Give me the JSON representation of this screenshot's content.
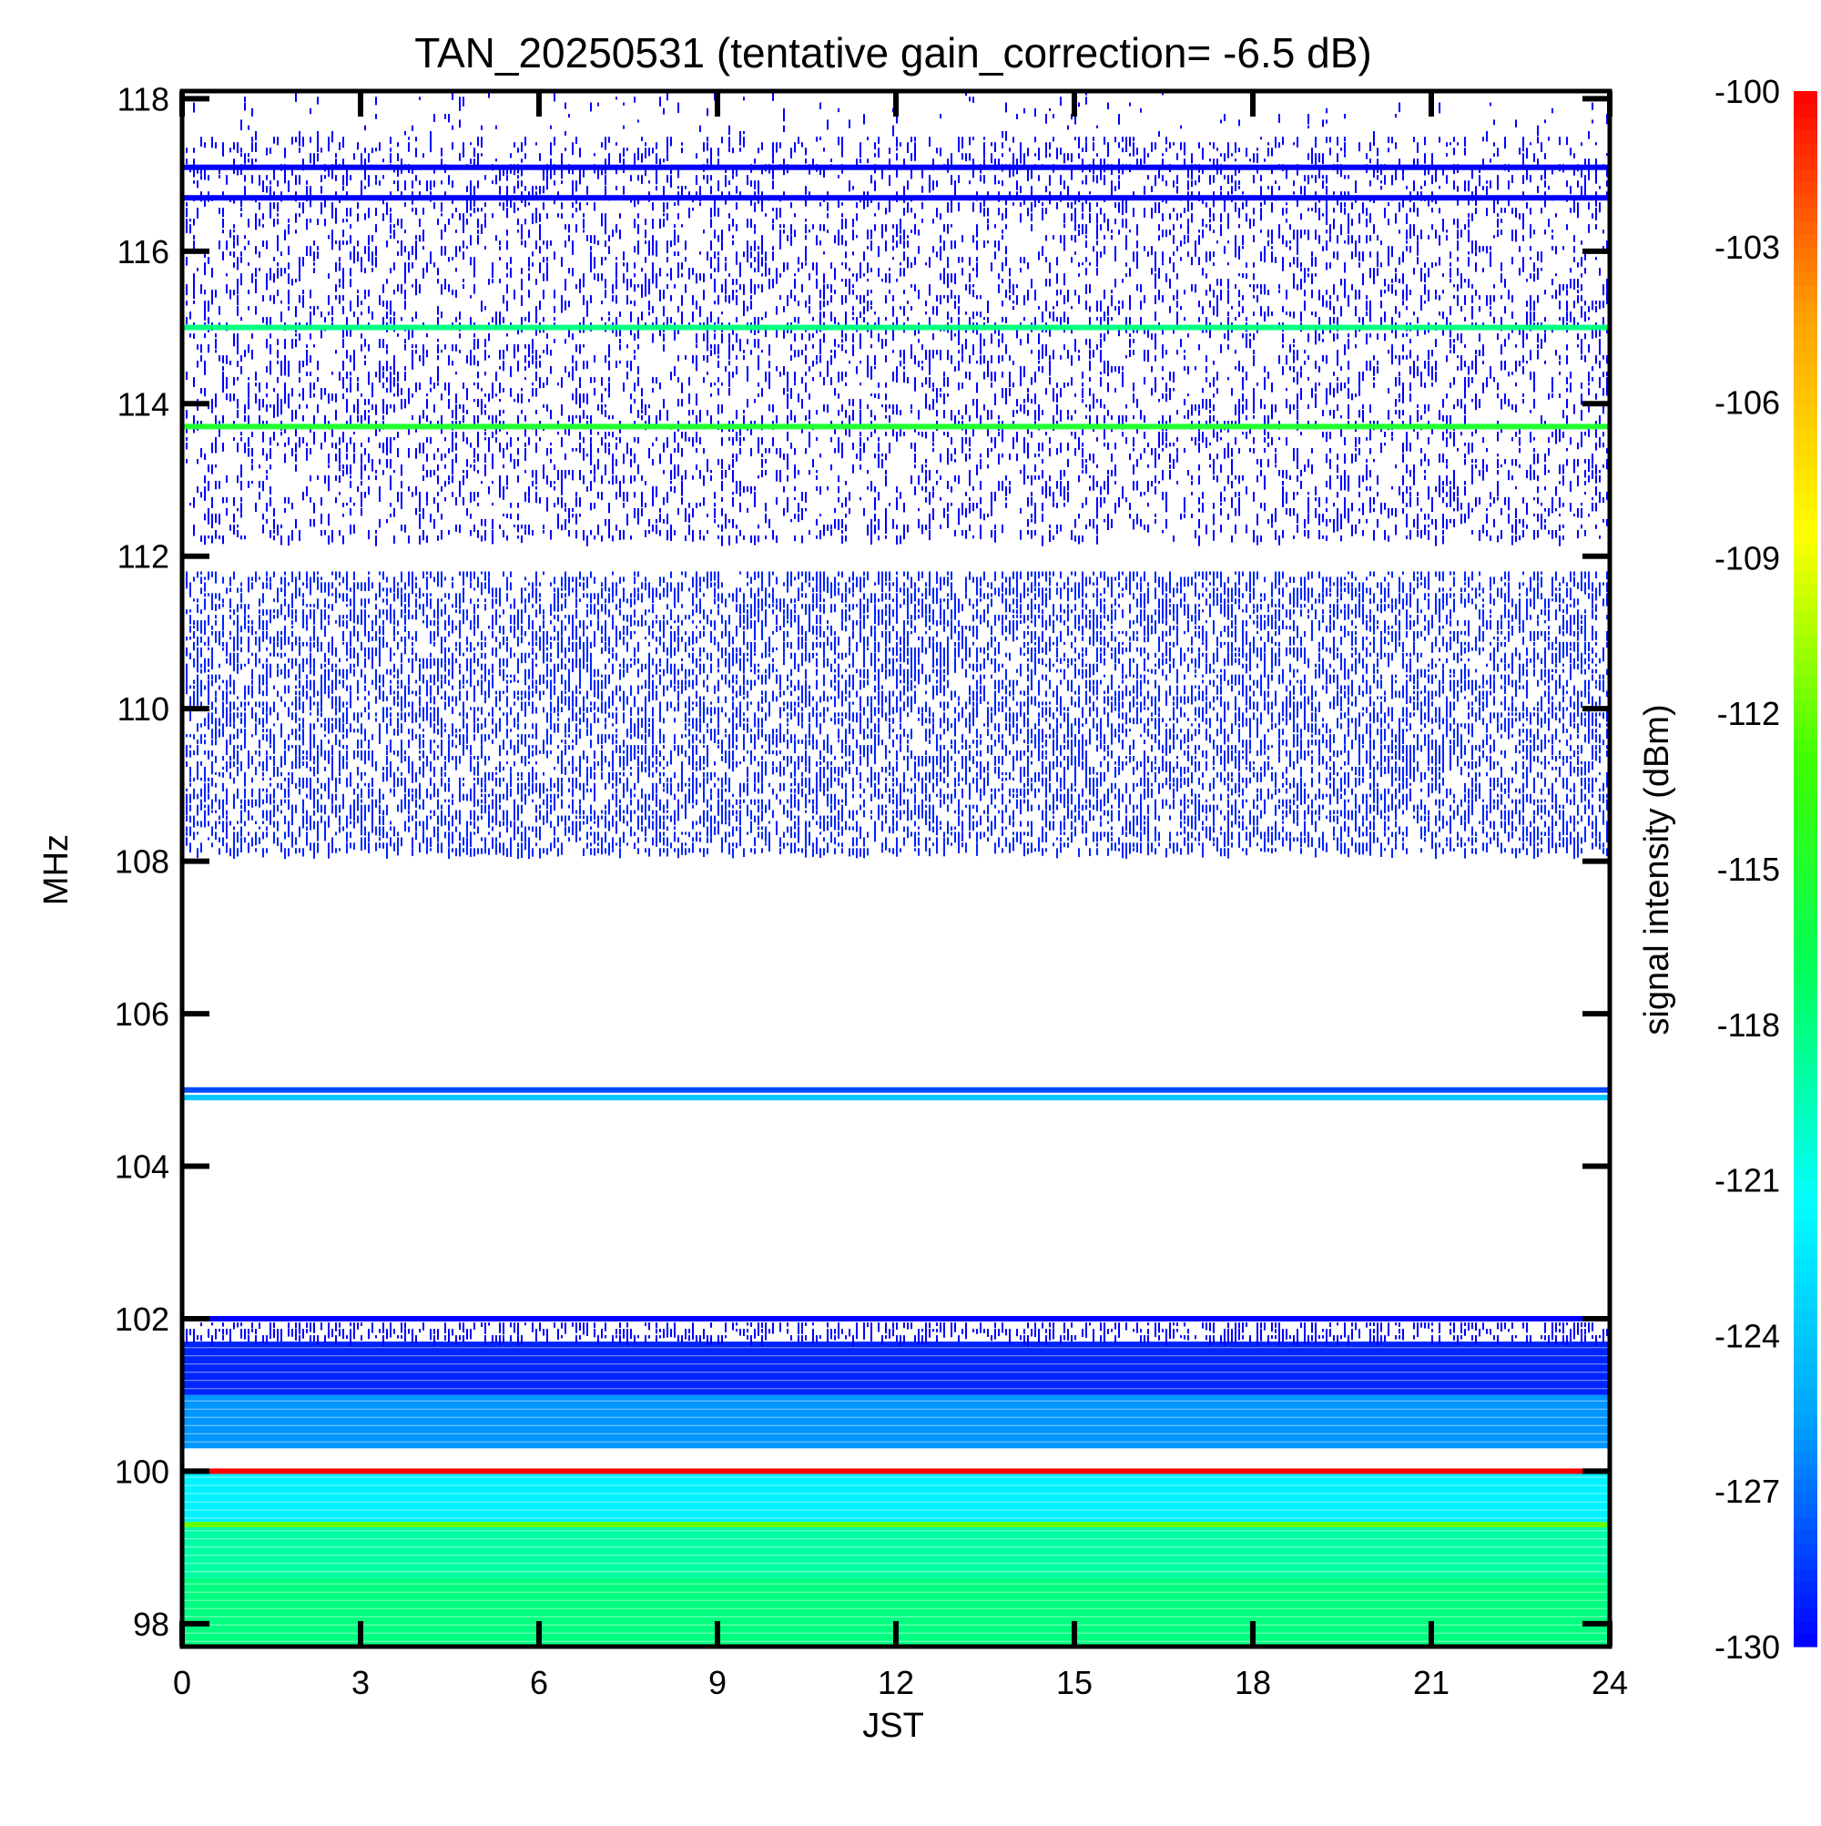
{
  "chart_data": {
    "type": "heatmap",
    "title": "TAN_20250531 (tentative gain_correction= -6.5 dB)",
    "xlabel": "JST",
    "ylabel": "MHz",
    "colorbar_label": "signal intensity (dBm)",
    "xlim": [
      0,
      24
    ],
    "ylim": [
      97.7,
      118.1
    ],
    "x_ticks": [
      0,
      3,
      6,
      9,
      12,
      15,
      18,
      21,
      24
    ],
    "x_tick_labels": [
      "0",
      "3",
      "6",
      "9",
      "12",
      "15",
      "18",
      "21",
      "24"
    ],
    "y_ticks": [
      98,
      100,
      102,
      104,
      106,
      108,
      110,
      112,
      114,
      116,
      118
    ],
    "y_tick_labels": [
      "98",
      "100",
      "102",
      "104",
      "106",
      "108",
      "110",
      "112",
      "114",
      "116",
      "118"
    ],
    "color_range": [
      -130,
      -100
    ],
    "colorbar_ticks": [
      -100,
      -103,
      -106,
      -109,
      -112,
      -115,
      -118,
      -121,
      -124,
      -127,
      -130
    ],
    "colorbar_tick_labels": [
      "-100",
      "-103",
      "-106",
      "-109",
      "-112",
      "-115",
      "-118",
      "-121",
      "-124",
      "-127",
      "-130"
    ],
    "colormap": [
      "#0000ff",
      "#00a0ff",
      "#00ffff",
      "#00ff60",
      "#40ff00",
      "#ffff00",
      "#ffa000",
      "#ff0000"
    ],
    "bands": [
      {
        "f_min": 97.7,
        "f_max": 98.6,
        "level_dBm": -118,
        "fill": "full"
      },
      {
        "f_min": 98.6,
        "f_max": 99.3,
        "level_dBm": -119,
        "fill": "full"
      },
      {
        "f_min": 99.3,
        "f_max": 100.0,
        "level_dBm": -122,
        "fill": "full"
      },
      {
        "f_min": 100.3,
        "f_max": 101.0,
        "level_dBm": -126,
        "fill": "full"
      },
      {
        "f_min": 101.0,
        "f_max": 101.7,
        "level_dBm": -129,
        "fill": "full"
      },
      {
        "f_min": 101.7,
        "f_max": 101.95,
        "level_dBm": -130,
        "fill": "sparse"
      },
      {
        "f_min": 108.1,
        "f_max": 111.8,
        "level_dBm": -129,
        "fill": "dense"
      },
      {
        "f_min": 112.2,
        "f_max": 117.5,
        "level_dBm": -130,
        "fill": "medium"
      },
      {
        "f_min": 117.5,
        "f_max": 118.1,
        "level_dBm": -130,
        "fill": "very-sparse"
      }
    ],
    "lines": [
      {
        "freq": 100.0,
        "level_dBm": -100
      },
      {
        "freq": 99.3,
        "level_dBm": -112
      },
      {
        "freq": 102.0,
        "level_dBm": -130
      },
      {
        "freq": 104.9,
        "level_dBm": -124
      },
      {
        "freq": 105.0,
        "level_dBm": -128
      },
      {
        "freq": 113.7,
        "level_dBm": -115
      },
      {
        "freq": 115.0,
        "level_dBm": -118
      },
      {
        "freq": 117.1,
        "level_dBm": -130
      },
      {
        "freq": 116.7,
        "level_dBm": -130
      }
    ]
  }
}
